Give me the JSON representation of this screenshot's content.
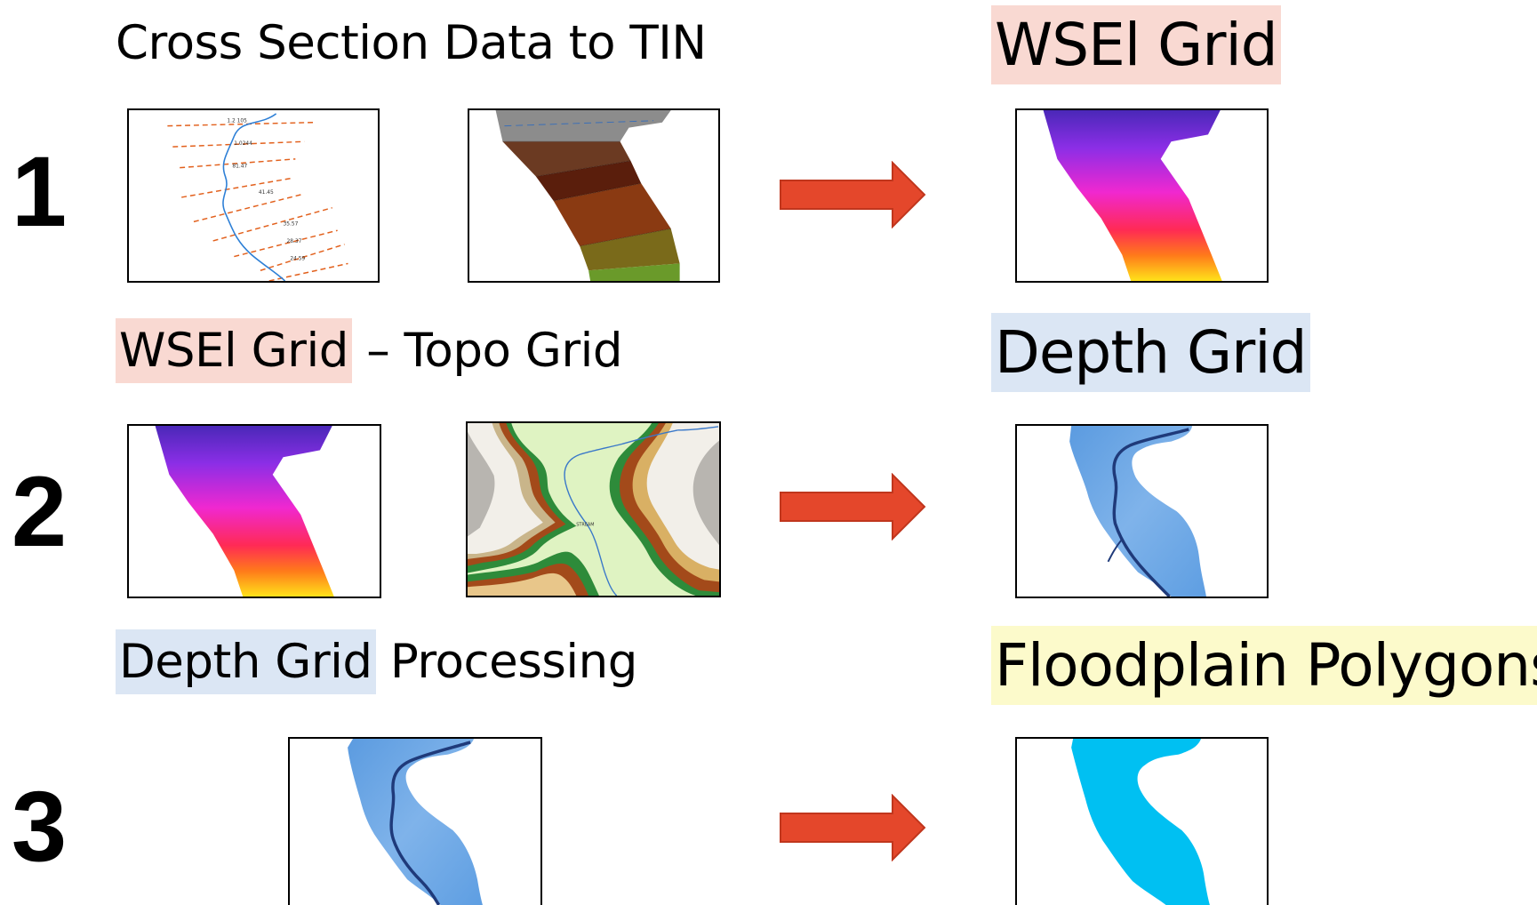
{
  "steps": [
    {
      "number": "1",
      "heading": {
        "text": "Cross Section Data to TIN"
      },
      "result": {
        "text": "WSEl Grid",
        "highlight": "#f9d9d2"
      },
      "inputs": [
        "cross-section-lines",
        "tin-surface"
      ],
      "output": "wsel-grid"
    },
    {
      "number": "2",
      "heading": {
        "part1": "WSEl Grid",
        "part1_highlight": "#f9d9d2",
        "part2": " – Topo Grid"
      },
      "result": {
        "text": "Depth Grid",
        "highlight": "#dbe6f4"
      },
      "inputs": [
        "wsel-grid",
        "topo-grid"
      ],
      "output": "depth-grid"
    },
    {
      "number": "3",
      "heading": {
        "part1": "Depth Grid",
        "part1_highlight": "#dbe6f4",
        "part2": " Processing"
      },
      "result": {
        "text": "Floodplain Polygons",
        "highlight": "#fcfacb"
      },
      "inputs": [
        "depth-grid"
      ],
      "output": "floodplain-polygon"
    }
  ],
  "colors": {
    "arrow": "#e4472b",
    "arrow_border": "#c0361d",
    "floodplain": "#00c0f2",
    "depth_fill": "#6fa8e6",
    "stream": "#1f3a7a"
  }
}
